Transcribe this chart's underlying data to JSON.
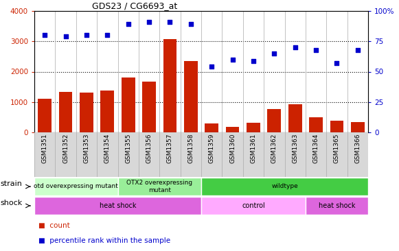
{
  "title": "GDS23 / CG6693_at",
  "samples": [
    "GSM1351",
    "GSM1352",
    "GSM1353",
    "GSM1354",
    "GSM1355",
    "GSM1356",
    "GSM1357",
    "GSM1358",
    "GSM1359",
    "GSM1360",
    "GSM1361",
    "GSM1362",
    "GSM1363",
    "GSM1364",
    "GSM1365",
    "GSM1366"
  ],
  "counts": [
    1100,
    1330,
    1310,
    1380,
    1800,
    1670,
    3080,
    2340,
    290,
    170,
    310,
    760,
    920,
    490,
    390,
    330
  ],
  "percentiles": [
    80,
    79,
    80,
    80,
    89,
    91,
    91,
    89,
    54,
    60,
    59,
    65,
    70,
    68,
    57,
    68
  ],
  "bar_color": "#cc2200",
  "dot_color": "#0000cc",
  "ylim_left": [
    0,
    4000
  ],
  "ylim_right": [
    0,
    100
  ],
  "yticks_left": [
    0,
    1000,
    2000,
    3000,
    4000
  ],
  "yticks_right": [
    0,
    25,
    50,
    75,
    100
  ],
  "yticklabels_right": [
    "0",
    "25",
    "50",
    "75",
    "100%"
  ],
  "strain_groups": [
    {
      "label": "otd overexpressing mutant",
      "start": 0,
      "end": 4,
      "color": "#ccffcc"
    },
    {
      "label": "OTX2 overexpressing\nmutant",
      "start": 4,
      "end": 8,
      "color": "#99ee99"
    },
    {
      "label": "wildtype",
      "start": 8,
      "end": 16,
      "color": "#44cc44"
    }
  ],
  "shock_groups": [
    {
      "label": "heat shock",
      "start": 0,
      "end": 8,
      "color": "#dd66dd"
    },
    {
      "label": "control",
      "start": 8,
      "end": 13,
      "color": "#ffaaff"
    },
    {
      "label": "heat shock",
      "start": 13,
      "end": 16,
      "color": "#dd66dd"
    }
  ],
  "strain_label": "strain",
  "shock_label": "shock",
  "legend_items": [
    {
      "color": "#cc2200",
      "label": "count"
    },
    {
      "color": "#0000cc",
      "label": "percentile rank within the sample"
    }
  ],
  "bg_color": "#d8d8d8",
  "plot_bg": "#ffffff",
  "grid_color": "#000000",
  "sep_color": "#aaaaaa"
}
